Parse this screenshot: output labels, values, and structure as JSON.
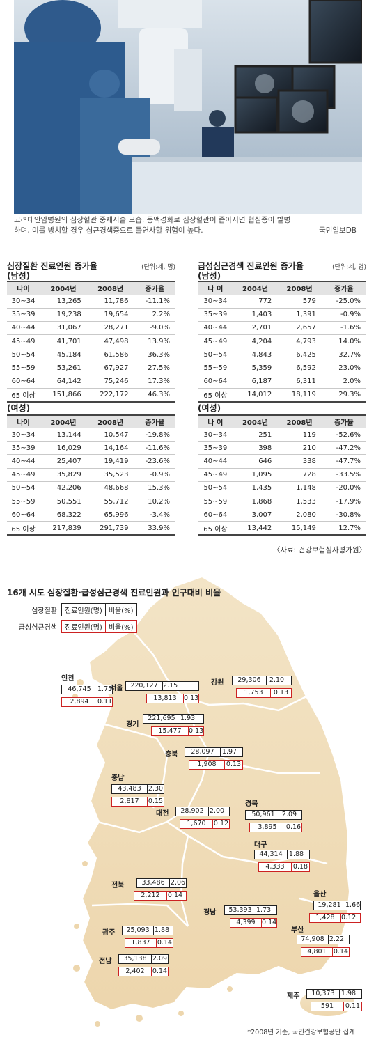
{
  "caption": {
    "line1": "고려대안암병원의 심장혈관 중재시술 모습. 동맥경화로 심장혈관이 좁아지면 협심증이 발병",
    "line2": "하며, 이를 방치할 경우 심근경색증으로 돌연사할 위험이 높다.",
    "credit": "국민일보DB"
  },
  "tables": {
    "heart": {
      "title": "심장질환 진료인원 증가율",
      "unit": "(단위:세, 명)",
      "male_label": "(남성)",
      "female_label": "(여성)",
      "headers": [
        "나이",
        "2004년",
        "2008년",
        "증가율"
      ],
      "male": [
        [
          "30~34",
          "13,265",
          "11,786",
          "-11.1%"
        ],
        [
          "35~39",
          "19,238",
          "19,654",
          "2.2%"
        ],
        [
          "40~44",
          "31,067",
          "28,271",
          "-9.0%"
        ],
        [
          "45~49",
          "41,701",
          "47,498",
          "13.9%"
        ],
        [
          "50~54",
          "45,184",
          "61,586",
          "36.3%"
        ],
        [
          "55~59",
          "53,261",
          "67,927",
          "27.5%"
        ],
        [
          "60~64",
          "64,142",
          "75,246",
          "17.3%"
        ],
        [
          "65 이상",
          "151,866",
          "222,172",
          "46.3%"
        ]
      ],
      "female": [
        [
          "30~34",
          "13,144",
          "10,547",
          "-19.8%"
        ],
        [
          "35~39",
          "16,029",
          "14,164",
          "-11.6%"
        ],
        [
          "40~44",
          "25,407",
          "19,419",
          "-23.6%"
        ],
        [
          "45~49",
          "35,829",
          "35,523",
          "-0.9%"
        ],
        [
          "50~54",
          "42,206",
          "48,668",
          "15.3%"
        ],
        [
          "55~59",
          "50,551",
          "55,712",
          "10.2%"
        ],
        [
          "60~64",
          "68,322",
          "65,996",
          "-3.4%"
        ],
        [
          "65 이상",
          "217,839",
          "291,739",
          "33.9%"
        ]
      ]
    },
    "mi": {
      "title": "급성심근경색 진료인원 증가율",
      "unit": "(단위:세, 명)",
      "male_label": "(남성)",
      "female_label": "(여성)",
      "headers": [
        "나 이",
        "2004년",
        "2008년",
        "증가율"
      ],
      "male": [
        [
          "30~34",
          "772",
          "579",
          "-25.0%"
        ],
        [
          "35~39",
          "1,403",
          "1,391",
          "-0.9%"
        ],
        [
          "40~44",
          "2,701",
          "2,657",
          "-1.6%"
        ],
        [
          "45~49",
          "4,204",
          "4,793",
          "14.0%"
        ],
        [
          "50~54",
          "4,843",
          "6,425",
          "32.7%"
        ],
        [
          "55~59",
          "5,359",
          "6,592",
          "23.0%"
        ],
        [
          "60~64",
          "6,187",
          "6,311",
          "2.0%"
        ],
        [
          "65 이상",
          "14,012",
          "18,119",
          "29.3%"
        ]
      ],
      "female": [
        [
          "30~34",
          "251",
          "119",
          "-52.6%"
        ],
        [
          "35~39",
          "398",
          "210",
          "-47.2%"
        ],
        [
          "40~44",
          "646",
          "338",
          "-47.7%"
        ],
        [
          "45~49",
          "1,095",
          "728",
          "-33.5%"
        ],
        [
          "50~54",
          "1,435",
          "1,148",
          "-20.0%"
        ],
        [
          "55~59",
          "1,868",
          "1,533",
          "-17.9%"
        ],
        [
          "60~64",
          "3,007",
          "2,080",
          "-30.8%"
        ],
        [
          "65 이상",
          "13,442",
          "15,149",
          "12.7%"
        ]
      ]
    },
    "source": "〈자료: 건강보험심사평가원〉"
  },
  "map": {
    "title": "16개 시도 심장질환·급성심근경색 진료인원과 인구대비 비율",
    "legend": {
      "heart_label": "심장질환",
      "mi_label": "급성심근경색",
      "col1": "진료인원(명)",
      "col2": "비율(%)"
    },
    "regions": [
      {
        "name": "인천",
        "heart": [
          "46,745",
          "1.75"
        ],
        "mi": [
          "2,894",
          "0.11"
        ]
      },
      {
        "name": "서울",
        "heart": [
          "220,127",
          "2.15"
        ],
        "mi": [
          "13,813",
          "0.13"
        ]
      },
      {
        "name": "강원",
        "heart": [
          "29,306",
          "2.10"
        ],
        "mi": [
          "1,753",
          "0.13"
        ]
      },
      {
        "name": "경기",
        "heart": [
          "221,695",
          "1.93"
        ],
        "mi": [
          "15,477",
          "0.13"
        ]
      },
      {
        "name": "충북",
        "heart": [
          "28,097",
          "1.97"
        ],
        "mi": [
          "1,908",
          "0.13"
        ]
      },
      {
        "name": "충남",
        "heart": [
          "43,483",
          "2.30"
        ],
        "mi": [
          "2,817",
          "0.15"
        ]
      },
      {
        "name": "대전",
        "heart": [
          "28,902",
          "2.00"
        ],
        "mi": [
          "1,670",
          "0.12"
        ]
      },
      {
        "name": "경북",
        "heart": [
          "50,961",
          "2.09"
        ],
        "mi": [
          "3,895",
          "0.16"
        ]
      },
      {
        "name": "대구",
        "heart": [
          "44,314",
          "1.88"
        ],
        "mi": [
          "4,333",
          "0.18"
        ]
      },
      {
        "name": "전북",
        "heart": [
          "33,486",
          "2.06"
        ],
        "mi": [
          "2,212",
          "0.14"
        ]
      },
      {
        "name": "울산",
        "heart": [
          "19,281",
          "1.66"
        ],
        "mi": [
          "1,428",
          "0.12"
        ]
      },
      {
        "name": "경남",
        "heart": [
          "53,393",
          "1.73"
        ],
        "mi": [
          "4,399",
          "0.14"
        ]
      },
      {
        "name": "광주",
        "heart": [
          "25,093",
          "1.88"
        ],
        "mi": [
          "1,837",
          "0.14"
        ]
      },
      {
        "name": "부산",
        "heart": [
          "74,908",
          "2.22"
        ],
        "mi": [
          "4,801",
          "0.14"
        ]
      },
      {
        "name": "전남",
        "heart": [
          "35,138",
          "2.09"
        ],
        "mi": [
          "2,402",
          "0.14"
        ]
      },
      {
        "name": "제주",
        "heart": [
          "10,373",
          "1.98"
        ],
        "mi": [
          "591",
          "0.11"
        ]
      }
    ],
    "footnote": "*2008년 기준, 국민건강보험공단 집계"
  }
}
